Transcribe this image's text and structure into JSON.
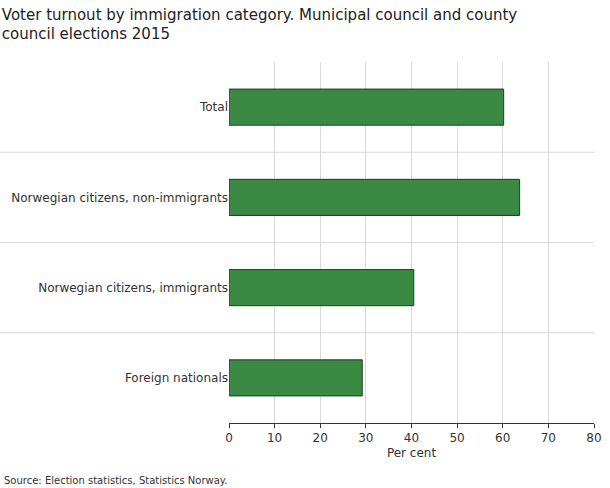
{
  "chart_data": {
    "type": "bar",
    "orientation": "horizontal",
    "title": "Voter turnout by immigration category. Municipal council and county council elections 2015",
    "categories": [
      "Total",
      "Norwegian citizens, non-immigrants",
      "Norwegian citizens, immigrants",
      "Foreign nationals"
    ],
    "values": [
      60.2,
      63.7,
      40.5,
      29.2
    ],
    "color": "#3a8a43",
    "x_label": "Per cent",
    "xlim": [
      0,
      80
    ],
    "xticks": [
      0,
      10,
      20,
      30,
      40,
      50,
      60,
      70,
      80
    ],
    "grid": true,
    "source": "Source: Election statistics, Statistics Norway."
  }
}
